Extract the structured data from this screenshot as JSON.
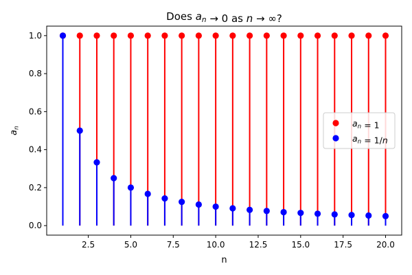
{
  "chart_data": {
    "type": "stem",
    "title": "Does a_n → 0 as n → ∞?",
    "xlabel": "n",
    "ylabel": "a_n",
    "xlim": [
      0.05,
      20.95
    ],
    "ylim": [
      -0.05,
      1.05
    ],
    "xticks": [
      2.5,
      5.0,
      7.5,
      10.0,
      12.5,
      15.0,
      17.5,
      20.0
    ],
    "xtick_labels": [
      "2.5",
      "5.0",
      "7.5",
      "10.0",
      "12.5",
      "15.0",
      "17.5",
      "20.0"
    ],
    "yticks": [
      0.0,
      0.2,
      0.4,
      0.6,
      0.8,
      1.0
    ],
    "ytick_labels": [
      "0.0",
      "0.2",
      "0.4",
      "0.6",
      "0.8",
      "1.0"
    ],
    "grid": false,
    "legend_position": "center-right",
    "x": [
      1,
      2,
      3,
      4,
      5,
      6,
      7,
      8,
      9,
      10,
      11,
      12,
      13,
      14,
      15,
      16,
      17,
      18,
      19,
      20
    ],
    "series": [
      {
        "name": "a_n = 1",
        "color": "#ff0000",
        "values": [
          1,
          1,
          1,
          1,
          1,
          1,
          1,
          1,
          1,
          1,
          1,
          1,
          1,
          1,
          1,
          1,
          1,
          1,
          1,
          1
        ]
      },
      {
        "name": "a_n = 1/n",
        "color": "#0000ff",
        "values": [
          1.0,
          0.5,
          0.333,
          0.25,
          0.2,
          0.167,
          0.143,
          0.125,
          0.111,
          0.1,
          0.091,
          0.083,
          0.077,
          0.071,
          0.067,
          0.0625,
          0.059,
          0.056,
          0.053,
          0.05
        ]
      }
    ]
  }
}
